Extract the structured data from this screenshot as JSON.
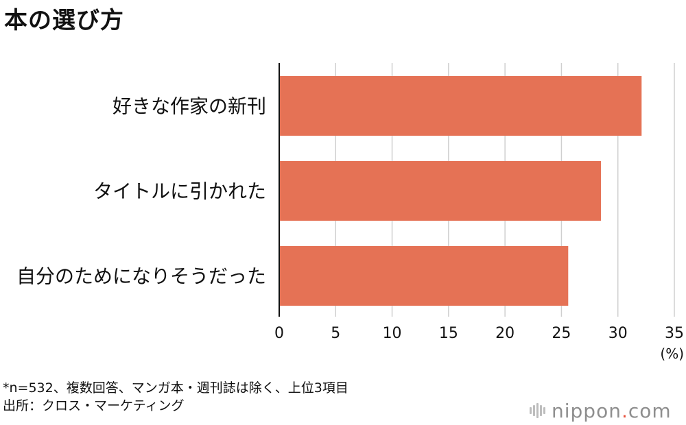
{
  "title": "本の選び方",
  "chart_data": {
    "type": "bar",
    "orientation": "horizontal",
    "title": "本の選び方",
    "categories": [
      "好きな作家の新刊",
      "タイトルに引かれた",
      "自分のためになりそうだった"
    ],
    "values": [
      32.1,
      28.5,
      25.6
    ],
    "xlim": [
      0,
      35
    ],
    "xticks": [
      0,
      5,
      10,
      15,
      20,
      25,
      30,
      35
    ],
    "unit": "(%)",
    "grid": true,
    "bar_color": "#e57255"
  },
  "notes": {
    "line1": "*n=532、複数回答、マンガ本・週刊誌は除く、上位3項目",
    "line2": "出所：クロス・マーケティング"
  },
  "brand": {
    "text": "nippon",
    "dot": ".",
    "suffix": "com"
  }
}
